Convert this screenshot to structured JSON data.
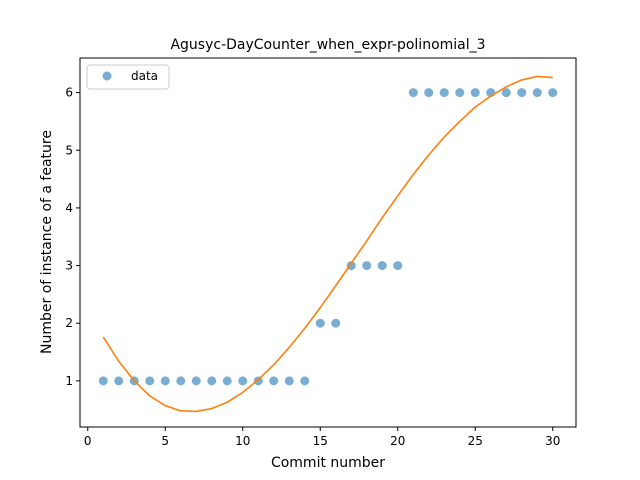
{
  "chart_data": {
    "type": "scatter",
    "title": "Agusyc-DayCounter_when_expr-polinomial_3",
    "xlabel": "Commit number",
    "ylabel": "Number of instance of a feature",
    "xlim": [
      -0.5,
      31.5
    ],
    "ylim": [
      0.2,
      6.6
    ],
    "xticks": [
      0,
      5,
      10,
      15,
      20,
      25,
      30
    ],
    "yticks": [
      1,
      2,
      3,
      4,
      5,
      6
    ],
    "grid": false,
    "legend": {
      "position": "top-left",
      "entries": [
        "data"
      ]
    },
    "series": [
      {
        "name": "data",
        "kind": "scatter",
        "color": "#1f77b4",
        "x": [
          1,
          2,
          3,
          4,
          5,
          6,
          7,
          8,
          9,
          10,
          11,
          12,
          13,
          14,
          15,
          16,
          17,
          18,
          19,
          20,
          21,
          22,
          23,
          24,
          25,
          26,
          27,
          28,
          29,
          30
        ],
        "y": [
          1,
          1,
          1,
          1,
          1,
          1,
          1,
          1,
          1,
          1,
          1,
          1,
          1,
          1,
          2,
          2,
          3,
          3,
          3,
          3,
          6,
          6,
          6,
          6,
          6,
          6,
          6,
          6,
          6,
          6
        ]
      },
      {
        "kind": "line",
        "color": "#ff7f0e",
        "x": [
          1,
          2,
          3,
          4,
          5,
          6,
          7,
          8,
          9,
          10,
          11,
          12,
          13,
          14,
          15,
          16,
          17,
          18,
          19,
          20,
          21,
          22,
          23,
          24,
          25,
          26,
          27,
          28,
          29,
          30
        ],
        "y": [
          1.76,
          1.34,
          1.0,
          0.74,
          0.57,
          0.48,
          0.47,
          0.52,
          0.63,
          0.8,
          1.02,
          1.28,
          1.58,
          1.91,
          2.27,
          2.65,
          3.04,
          3.43,
          3.83,
          4.21,
          4.58,
          4.92,
          5.23,
          5.5,
          5.75,
          5.94,
          6.1,
          6.22,
          6.28,
          6.26
        ]
      }
    ]
  }
}
